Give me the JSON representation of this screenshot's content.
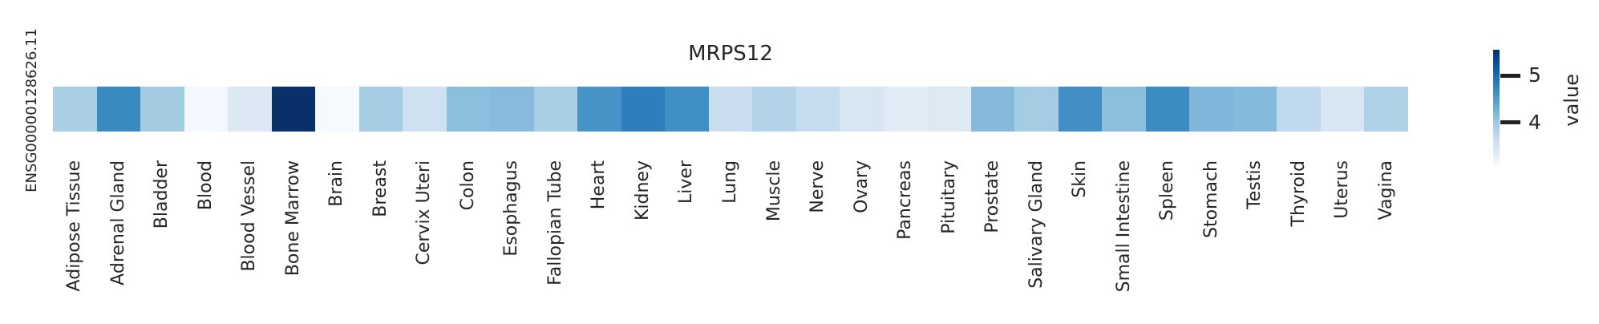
{
  "title": "MRPS12",
  "row_label": "ENSG00000128626.11",
  "colorbar": {
    "label": "value",
    "tick_top": "5",
    "tick_bottom": "4"
  },
  "colors": {
    "background": "#ffffff",
    "text": "#262626",
    "cmap_max": "#08306b",
    "cmap_min": "#f7fbff"
  },
  "chart_data": {
    "type": "heatmap",
    "title": "MRPS12",
    "colormap": "Blues",
    "legend_position": "right",
    "colorbar_label": "value",
    "colorbar_ticks": [
      4,
      5
    ],
    "rows": [
      "ENSG00000128626.11"
    ],
    "categories": [
      "Adipose Tissue",
      "Adrenal Gland",
      "Bladder",
      "Blood",
      "Blood Vessel",
      "Bone Marrow",
      "Brain",
      "Breast",
      "Cervix Uteri",
      "Colon",
      "Esophagus",
      "Fallopian Tube",
      "Heart",
      "Kidney",
      "Liver",
      "Lung",
      "Muscle",
      "Nerve",
      "Ovary",
      "Pancreas",
      "Pituitary",
      "Prostate",
      "Salivary Gland",
      "Skin",
      "Small Intestine",
      "Spleen",
      "Stomach",
      "Testis",
      "Thyroid",
      "Uterus",
      "Vagina"
    ],
    "series": [
      {
        "name": "ENSG00000128626.11",
        "values": [
          4.0,
          4.7,
          4.0,
          3.2,
          3.4,
          5.5,
          3.1,
          4.0,
          3.65,
          4.15,
          4.2,
          4.0,
          4.6,
          4.8,
          4.65,
          3.7,
          3.9,
          3.7,
          3.5,
          3.35,
          3.4,
          4.2,
          4.05,
          4.65,
          4.1,
          4.65,
          4.25,
          4.2,
          3.8,
          3.5,
          3.95
        ],
        "values_note": "estimated by matching cell colors against the colorbar scale",
        "cell_colors": [
          "#aacfe5",
          "#3a89c1",
          "#a3cbe2",
          "#f2f8fd",
          "#dce9f5",
          "#09306b",
          "#f6fafe",
          "#a6cde4",
          "#cfe0f1",
          "#8cbedd",
          "#88bbdb",
          "#a9cfe5",
          "#4694c7",
          "#2e7ebc",
          "#4190c5",
          "#c9ddef",
          "#b3d3e8",
          "#c5dbee",
          "#d8e6f3",
          "#e2ecf7",
          "#dfe9f4",
          "#86b9da",
          "#a4cce3",
          "#418fc4",
          "#8dbfdd",
          "#3c8cc3",
          "#80b6d9",
          "#86badb",
          "#c1d9ed",
          "#d9e7f4",
          "#b0d2e7"
        ]
      }
    ]
  }
}
